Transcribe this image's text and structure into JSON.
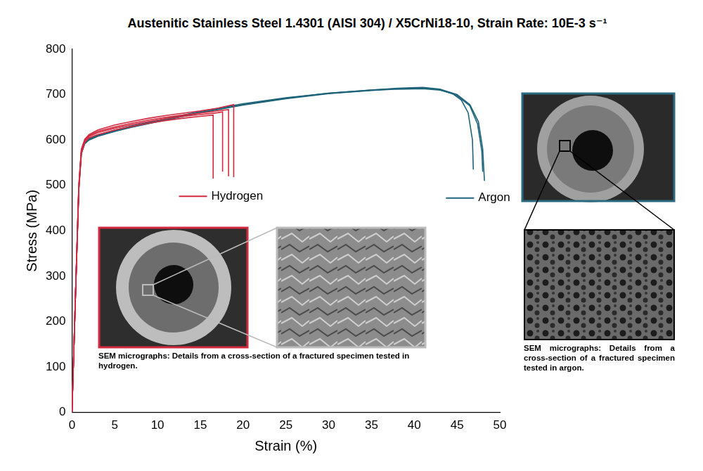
{
  "chart_data": {
    "type": "line",
    "title": "Austenitic Stainless Steel 1.4301 (AISI 304) / X5CrNi18-10, Strain Rate: 10E-3 s⁻¹",
    "x_label": "Strain (%)",
    "y_label": "Stress (MPa)",
    "xlim": [
      0,
      50
    ],
    "xticks": [
      0,
      5,
      10,
      15,
      20,
      25,
      30,
      35,
      40,
      45,
      50
    ],
    "ylim": [
      0,
      800
    ],
    "yticks": [
      0,
      100,
      200,
      300,
      400,
      500,
      600,
      700,
      800
    ],
    "grid": false,
    "series": [
      {
        "name": "Hydrogen",
        "color": "#d3293f",
        "x": [
          0,
          0.4,
          0.8,
          1.1,
          1.5,
          2,
          3,
          5,
          7,
          9,
          11,
          13,
          15,
          16.5,
          16.5
        ],
        "values": [
          0,
          250,
          490,
          570,
          595,
          605,
          612,
          622,
          630,
          637,
          643,
          648,
          652,
          655,
          515
        ]
      },
      {
        "name": "Hydrogen",
        "color": "#d3293f",
        "x": [
          0,
          0.4,
          0.8,
          1.1,
          1.5,
          2,
          3,
          5,
          7,
          9,
          11,
          13,
          15,
          17,
          17.6,
          17.6
        ],
        "values": [
          0,
          250,
          495,
          575,
          598,
          608,
          616,
          626,
          634,
          641,
          647,
          652,
          656,
          660,
          662,
          530
        ]
      },
      {
        "name": "Hydrogen",
        "color": "#d3293f",
        "x": [
          0,
          0.4,
          0.8,
          1.1,
          1.5,
          2,
          3,
          5,
          7,
          9,
          11,
          13,
          15,
          17,
          18.3,
          18.3
        ],
        "values": [
          0,
          250,
          500,
          578,
          600,
          610,
          619,
          629,
          637,
          644,
          650,
          655,
          659,
          664,
          667,
          520
        ]
      },
      {
        "name": "Hydrogen",
        "color": "#d3293f",
        "x": [
          0,
          0.4,
          0.8,
          1.1,
          1.5,
          2,
          3,
          5,
          7,
          9,
          11,
          13,
          15,
          17,
          18.9,
          18.9
        ],
        "values": [
          0,
          250,
          500,
          580,
          602,
          612,
          622,
          633,
          641,
          648,
          654,
          659,
          664,
          670,
          678,
          518
        ]
      },
      {
        "name": "Argon",
        "color": "#1e6479",
        "x": [
          0,
          0.4,
          0.8,
          1.1,
          1.5,
          2,
          3,
          5,
          7,
          10,
          15,
          20,
          25,
          30,
          35,
          38,
          41,
          43,
          44.5,
          45.5,
          46.3,
          46.8,
          46.9
        ],
        "values": [
          0,
          250,
          490,
          570,
          592,
          600,
          608,
          619,
          628,
          640,
          660,
          677,
          691,
          702,
          709,
          712,
          713,
          710,
          702,
          688,
          660,
          600,
          535
        ]
      },
      {
        "name": "Argon",
        "color": "#1e6479",
        "x": [
          0,
          0.4,
          0.8,
          1.1,
          1.5,
          2,
          3,
          5,
          7,
          10,
          15,
          20,
          25,
          30,
          35,
          38,
          41,
          43,
          45,
          46.5,
          47.5,
          48,
          48.2
        ],
        "values": [
          0,
          250,
          495,
          575,
          595,
          603,
          611,
          622,
          631,
          643,
          663,
          680,
          693,
          703,
          710,
          714,
          716,
          712,
          700,
          678,
          640,
          580,
          510
        ]
      },
      {
        "name": "Argon",
        "color": "#1e6479",
        "x": [
          0,
          0.4,
          0.8,
          1.1,
          1.5,
          2,
          3,
          5,
          7,
          10,
          15,
          20,
          25,
          30,
          35,
          38,
          41,
          43,
          45,
          46.5,
          47.4,
          47.9,
          48.0
        ],
        "values": [
          0,
          250,
          492,
          572,
          593,
          601,
          609,
          620,
          629,
          641,
          661,
          678,
          692,
          703,
          710,
          713,
          715,
          711,
          698,
          675,
          635,
          575,
          530
        ]
      }
    ],
    "annotations": [
      "SEM micrographs: Details from a cross-section of a fractured specimen tested in hydrogen.",
      "SEM micrographs: Details from a cross-section of a fractured specimen tested in argon."
    ]
  }
}
